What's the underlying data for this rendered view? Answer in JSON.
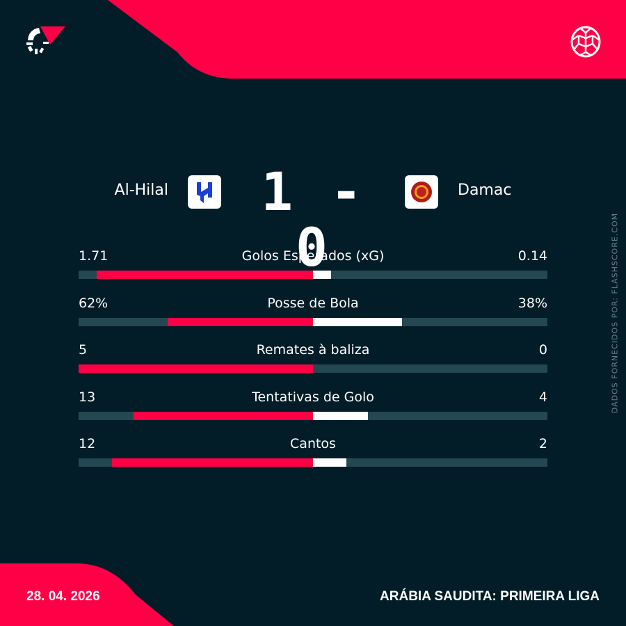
{
  "colors": {
    "background": "#021d28",
    "accent": "#ff0046",
    "track": "#234851",
    "away_bar": "#ffffff"
  },
  "header": {
    "logo_icon": "flashscore-logo-icon",
    "sport_icon": "football-icon"
  },
  "match": {
    "home": {
      "name": "Al-Hilal",
      "score": "1"
    },
    "away": {
      "name": "Damac",
      "score": "0"
    },
    "separator": "-"
  },
  "stats": [
    {
      "label": "Golos Esperados (xG)",
      "home": "1.71",
      "away": "0.14",
      "home_value": 1.71,
      "away_value": 0.14
    },
    {
      "label": "Posse de Bola",
      "home": "62%",
      "away": "38%",
      "home_value": 62,
      "away_value": 38
    },
    {
      "label": "Remates à baliza",
      "home": "5",
      "away": "0",
      "home_value": 5,
      "away_value": 0
    },
    {
      "label": "Tentativas de Golo",
      "home": "13",
      "away": "4",
      "home_value": 13,
      "away_value": 4
    },
    {
      "label": "Cantos",
      "home": "12",
      "away": "2",
      "home_value": 12,
      "away_value": 2
    }
  ],
  "footer": {
    "date": "28. 04. 2026",
    "competition": "ARÁBIA SAUDITA: PRIMEIRA LIGA"
  },
  "credit": "DADOS FORNECIDOS POR: FLASHSCORE.COM"
}
